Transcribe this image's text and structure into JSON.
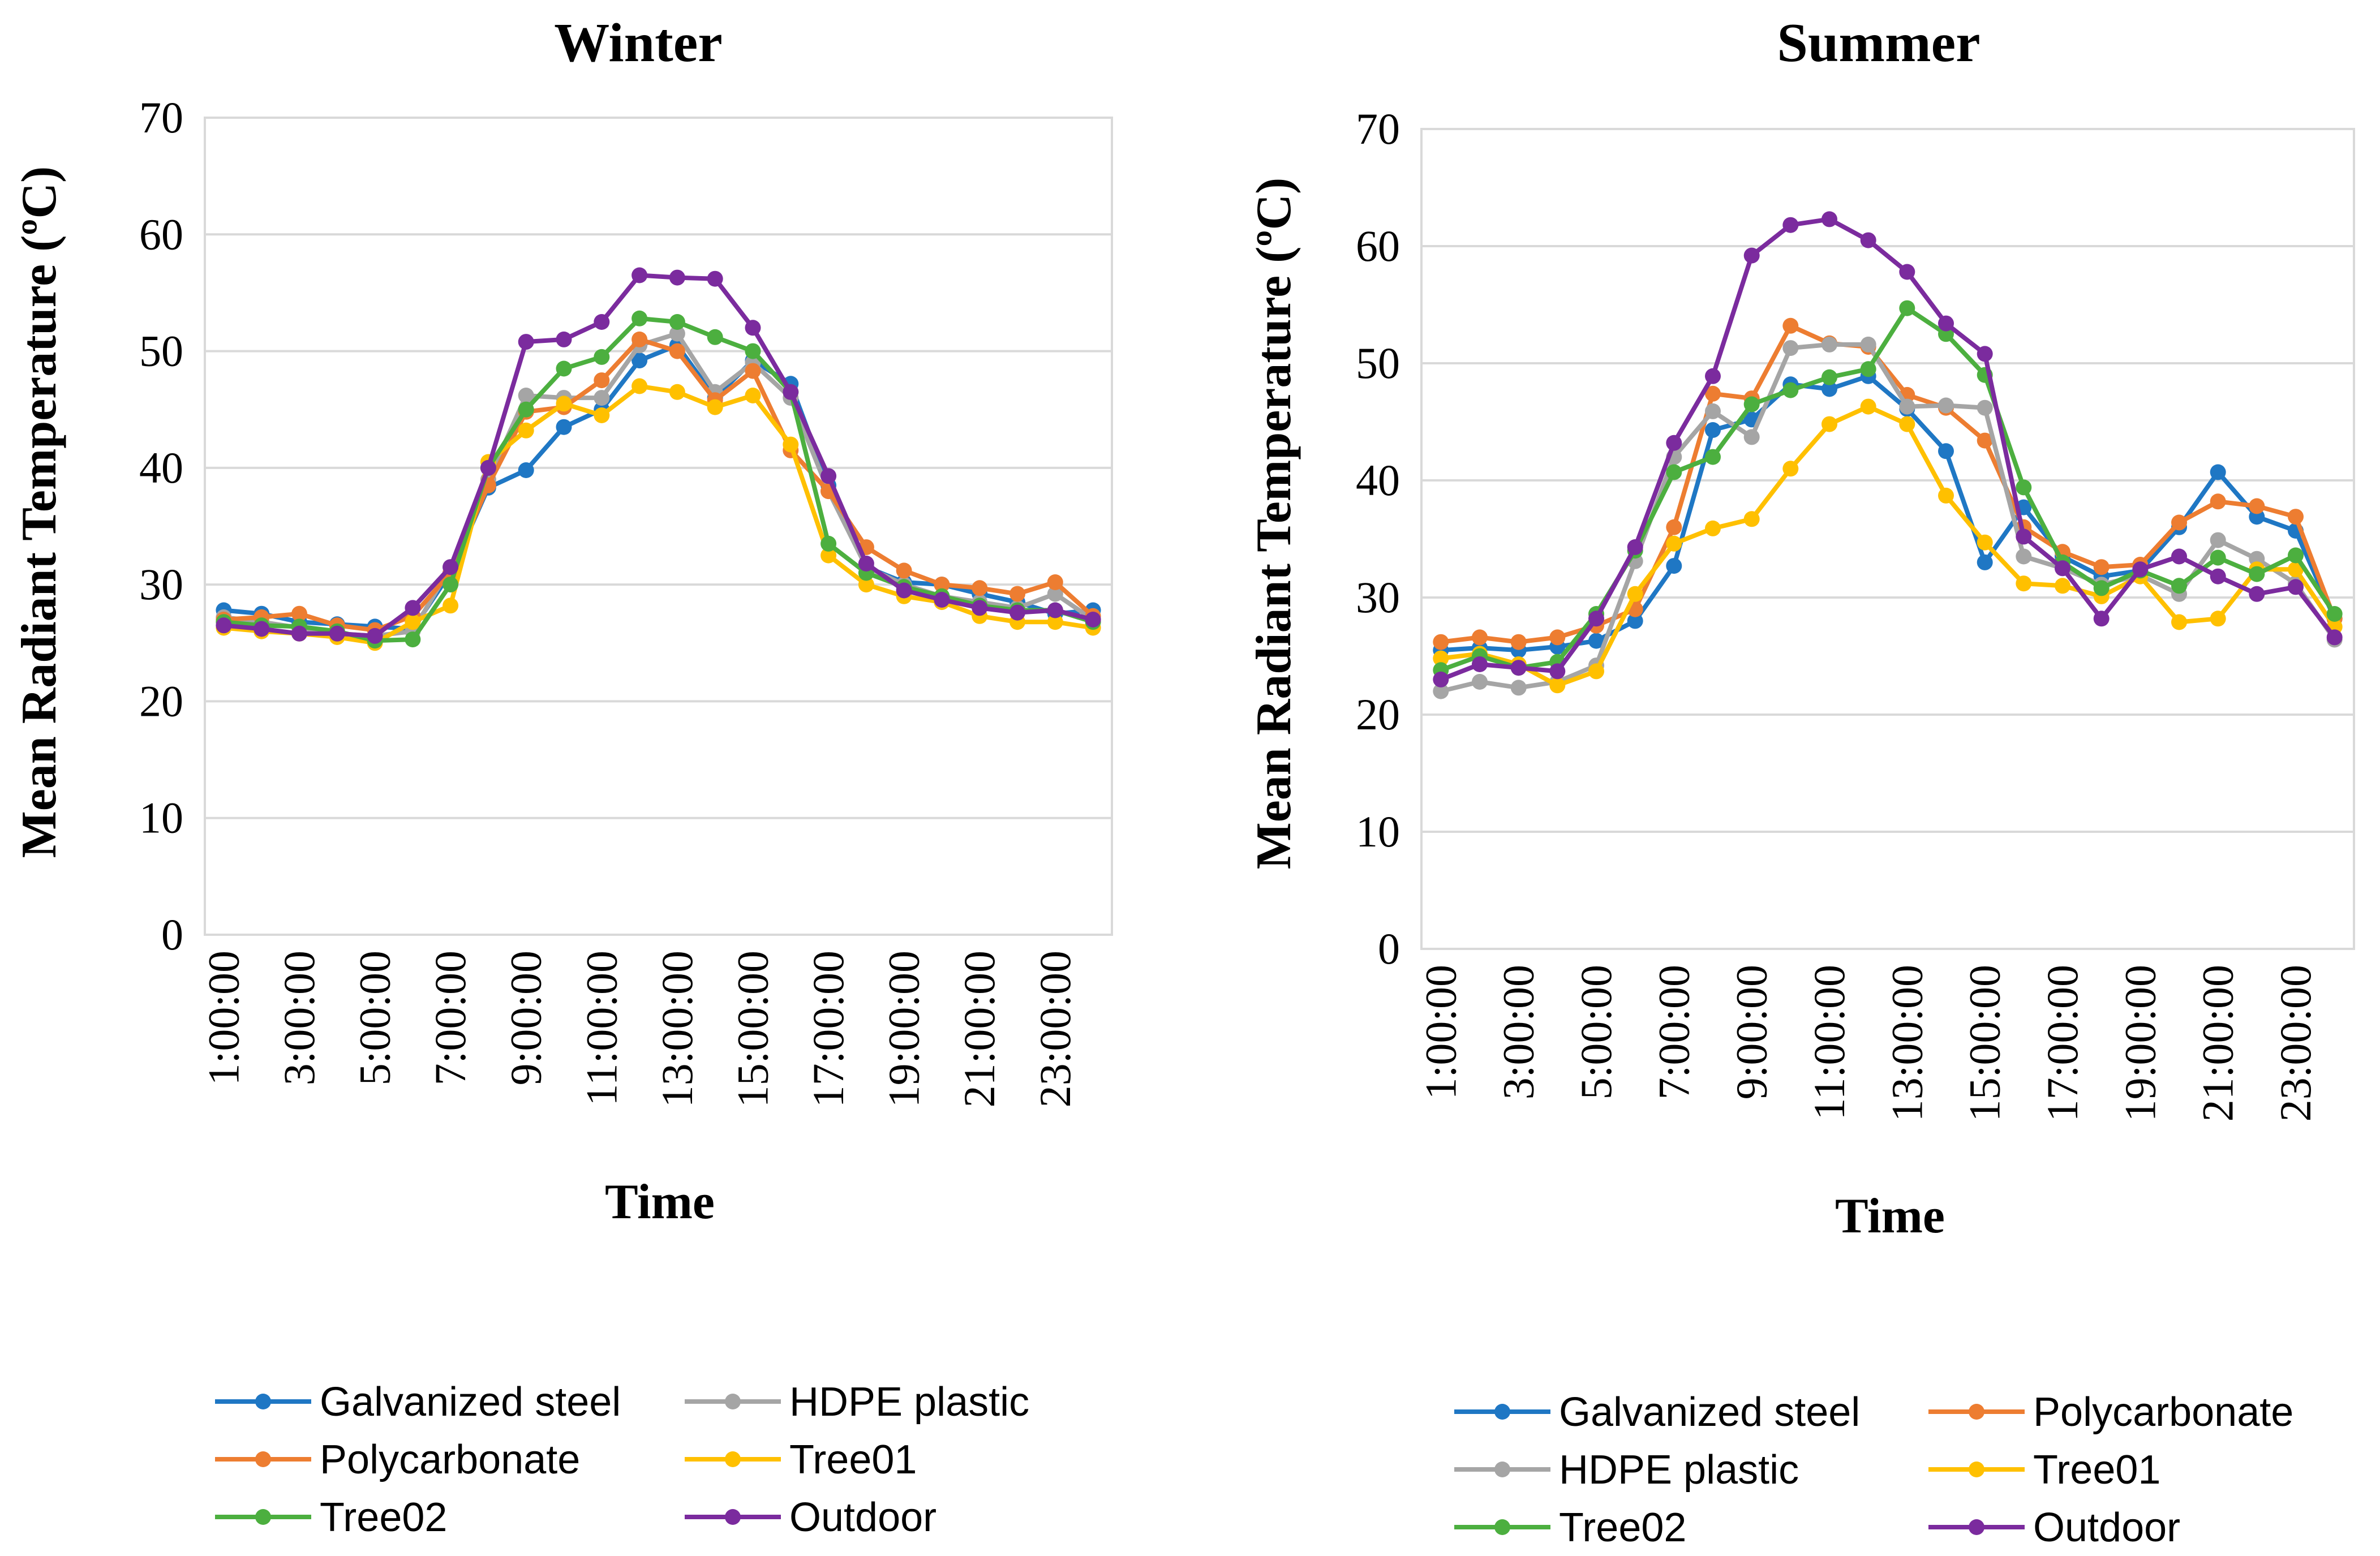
{
  "chart_data": [
    {
      "type": "line",
      "title": "Winter",
      "xlabel": "Time",
      "ylabel": "Mean Radiant Temperature (ºC)",
      "ylim": [
        0,
        70
      ],
      "yticks": [
        0,
        10,
        20,
        30,
        40,
        50,
        60,
        70
      ],
      "categories": [
        "1:00:00",
        "2:00:00",
        "3:00:00",
        "4:00:00",
        "5:00:00",
        "6:00:00",
        "7:00:00",
        "8:00:00",
        "9:00:00",
        "10:00:00",
        "11:00:00",
        "12:00:00",
        "13:00:00",
        "14:00:00",
        "15:00:00",
        "16:00:00",
        "17:00:00",
        "18:00:00",
        "19:00:00",
        "20:00:00",
        "21:00:00",
        "22:00:00",
        "23:00:00",
        "24:00:00"
      ],
      "tick_labels": [
        "1:00:00",
        "3:00:00",
        "5:00:00",
        "7:00:00",
        "9:00:00",
        "11:00:00",
        "13:00:00",
        "15:00:00",
        "17:00:00",
        "19:00:00",
        "21:00:00",
        "23:00:00"
      ],
      "legend_position": "bottom",
      "grid": true,
      "series": [
        {
          "name": "Galvanized steel",
          "color": "#1f77c4",
          "values": [
            27.8,
            27.5,
            26.8,
            26.6,
            26.4,
            26.2,
            31.0,
            38.3,
            39.8,
            43.5,
            45.0,
            49.2,
            50.5,
            46.0,
            49.2,
            47.2,
            38.5,
            31.5,
            30.2,
            30.0,
            29.2,
            28.5,
            27.5,
            27.8
          ]
        },
        {
          "name": "HDPE plastic",
          "color": "#a5a5a5",
          "values": [
            27.2,
            26.8,
            26.3,
            25.8,
            25.6,
            26.0,
            31.5,
            39.0,
            46.2,
            46.0,
            46.0,
            50.5,
            51.5,
            46.5,
            49.0,
            46.0,
            38.0,
            31.5,
            30.0,
            29.0,
            28.5,
            28.0,
            29.2,
            27.0
          ]
        },
        {
          "name": "Polycarbonate",
          "color": "#ed7d31",
          "values": [
            27.0,
            27.2,
            27.5,
            26.5,
            26.1,
            27.3,
            31.0,
            38.5,
            44.8,
            45.2,
            47.5,
            51.0,
            50.0,
            45.8,
            48.3,
            41.5,
            38.0,
            33.2,
            31.2,
            30.0,
            29.7,
            29.2,
            30.2,
            27.3
          ]
        },
        {
          "name": "Tree01",
          "color": "#ffc000",
          "values": [
            26.3,
            26.0,
            25.8,
            25.5,
            25.0,
            26.8,
            28.2,
            40.5,
            43.2,
            45.5,
            44.5,
            47.0,
            46.5,
            45.2,
            46.2,
            42.0,
            32.5,
            30.0,
            29.0,
            28.5,
            27.3,
            26.8,
            26.8,
            26.3
          ]
        },
        {
          "name": "Tree02",
          "color": "#4caf3f",
          "values": [
            26.8,
            26.5,
            26.4,
            26.0,
            25.2,
            25.3,
            30.0,
            40.0,
            45.0,
            48.5,
            49.5,
            52.8,
            52.5,
            51.2,
            50.0,
            46.5,
            33.5,
            31.0,
            29.8,
            29.0,
            28.2,
            27.8,
            27.8,
            26.8
          ]
        },
        {
          "name": "Outdoor",
          "color": "#7b2b9e",
          "values": [
            26.5,
            26.2,
            25.8,
            25.8,
            25.6,
            28.0,
            31.5,
            40.0,
            50.8,
            51.0,
            52.5,
            56.5,
            56.3,
            56.2,
            52.0,
            46.5,
            39.3,
            31.8,
            29.5,
            28.7,
            28.0,
            27.6,
            27.8,
            27.0
          ]
        }
      ],
      "legend": [
        [
          "Galvanized steel",
          "HDPE plastic"
        ],
        [
          "Polycarbonate",
          "Tree01"
        ],
        [
          "Tree02",
          "Outdoor"
        ]
      ]
    },
    {
      "type": "line",
      "title": "Summer",
      "xlabel": "Time",
      "ylabel": "Mean Radiant Temperature (ºC)",
      "ylim": [
        0,
        70
      ],
      "yticks": [
        0,
        10,
        20,
        30,
        40,
        50,
        60,
        70
      ],
      "categories": [
        "1:00:00",
        "2:00:00",
        "3:00:00",
        "4:00:00",
        "5:00:00",
        "6:00:00",
        "7:00:00",
        "8:00:00",
        "9:00:00",
        "10:00:00",
        "11:00:00",
        "12:00:00",
        "13:00:00",
        "14:00:00",
        "15:00:00",
        "16:00:00",
        "17:00:00",
        "18:00:00",
        "19:00:00",
        "20:00:00",
        "21:00:00",
        "22:00:00",
        "23:00:00",
        "24:00:00"
      ],
      "tick_labels": [
        "1:00:00",
        "3:00:00",
        "5:00:00",
        "7:00:00",
        "9:00:00",
        "11:00:00",
        "13:00:00",
        "15:00:00",
        "17:00:00",
        "19:00:00",
        "21:00:00",
        "23:00:00"
      ],
      "legend_position": "bottom",
      "grid": true,
      "series": [
        {
          "name": "Galvanized steel",
          "color": "#1f77c4",
          "values": [
            25.5,
            25.7,
            25.5,
            25.8,
            26.3,
            28.0,
            32.7,
            44.3,
            45.2,
            48.2,
            47.8,
            48.9,
            46.1,
            42.5,
            33.0,
            37.7,
            33.5,
            31.8,
            32.3,
            36.0,
            40.7,
            36.9,
            35.7,
            28.2
          ]
        },
        {
          "name": "Polycarbonate",
          "color": "#ed7d31",
          "values": [
            26.2,
            26.6,
            26.2,
            26.6,
            27.6,
            29.0,
            36.0,
            47.4,
            47.0,
            53.2,
            51.7,
            51.4,
            47.3,
            46.2,
            43.4,
            36.0,
            33.9,
            32.6,
            32.8,
            36.4,
            38.2,
            37.8,
            36.9,
            28.2
          ]
        },
        {
          "name": "HDPE plastic",
          "color": "#a5a5a5",
          "values": [
            22.0,
            22.8,
            22.3,
            22.8,
            24.2,
            33.1,
            42.0,
            45.9,
            43.7,
            51.3,
            51.6,
            51.6,
            46.3,
            46.4,
            46.2,
            33.5,
            32.5,
            31.1,
            31.9,
            30.3,
            34.9,
            33.3,
            31.2,
            26.4
          ]
        },
        {
          "name": "Tree01",
          "color": "#ffc000",
          "values": [
            24.8,
            25.2,
            24.3,
            22.5,
            23.7,
            30.3,
            34.6,
            35.9,
            36.7,
            41.0,
            44.8,
            46.3,
            44.8,
            38.7,
            34.7,
            31.2,
            31.0,
            30.1,
            31.8,
            27.9,
            28.2,
            32.4,
            32.4,
            27.5
          ]
        },
        {
          "name": "Tree02",
          "color": "#4caf3f",
          "values": [
            23.8,
            25.0,
            24.0,
            24.5,
            28.6,
            34.0,
            40.7,
            42.0,
            46.5,
            47.7,
            48.8,
            49.5,
            54.7,
            52.5,
            49.0,
            39.4,
            33.0,
            30.8,
            32.3,
            31.0,
            33.4,
            32.0,
            33.6,
            28.6
          ]
        },
        {
          "name": "Outdoor",
          "color": "#7b2b9e",
          "values": [
            23.0,
            24.3,
            24.0,
            23.7,
            28.2,
            34.3,
            43.2,
            48.9,
            59.2,
            61.8,
            62.3,
            60.5,
            57.8,
            53.4,
            50.8,
            35.2,
            32.5,
            28.2,
            32.4,
            33.5,
            31.8,
            30.3,
            30.9,
            26.6
          ]
        }
      ],
      "legend": [
        [
          "Galvanized steel",
          "Polycarbonate"
        ],
        [
          "HDPE plastic",
          "Tree01"
        ],
        [
          "Tree02",
          "Outdoor"
        ]
      ]
    }
  ]
}
